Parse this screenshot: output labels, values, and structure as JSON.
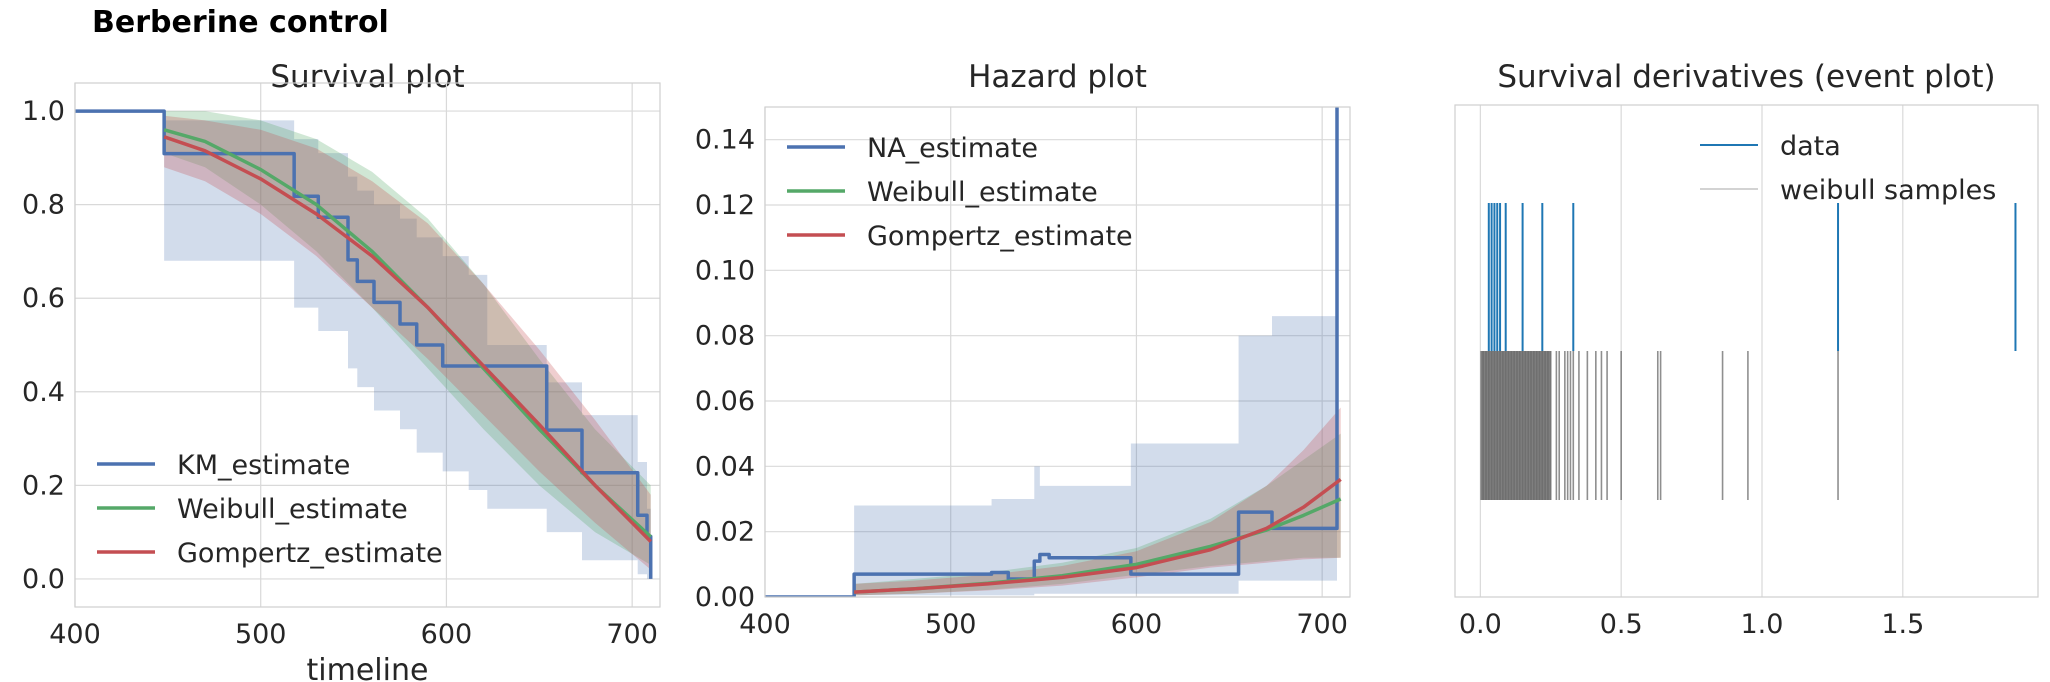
{
  "figure": {
    "suptitle": "Berberine control"
  },
  "colors": {
    "km": "#4c72b0",
    "km_band": "#4c72b0",
    "weibull": "#55a868",
    "gompertz": "#c44e52",
    "event_data": "#1f77b4",
    "event_samples": "#696969"
  },
  "chart_data": [
    {
      "type": "line",
      "title": "Survival plot",
      "xlabel": "timeline",
      "ylabel": "",
      "xlim": [
        400,
        715
      ],
      "ylim": [
        -0.06,
        1.06
      ],
      "xticks": [
        "400",
        "500",
        "600",
        "700"
      ],
      "yticks": [
        "0.0",
        "0.2",
        "0.4",
        "0.6",
        "0.8",
        "1.0"
      ],
      "legend_position": "lower-left",
      "series": [
        {
          "name": "KM_estimate",
          "kind": "step",
          "color_key": "km",
          "x": [
            400,
            448,
            518,
            531,
            547,
            552,
            561,
            575,
            584,
            598,
            612,
            622,
            654,
            673,
            703,
            708,
            710
          ],
          "y": [
            1.0,
            0.909,
            0.818,
            0.773,
            0.682,
            0.636,
            0.591,
            0.545,
            0.5,
            0.455,
            0.455,
            0.455,
            0.318,
            0.227,
            0.136,
            0.091,
            0.0
          ],
          "ci_lower": [
            1.0,
            0.68,
            0.58,
            0.53,
            0.45,
            0.41,
            0.36,
            0.32,
            0.27,
            0.23,
            0.19,
            0.15,
            0.1,
            0.04,
            0.01,
            0.0,
            0.0
          ],
          "ci_upper": [
            1.0,
            0.98,
            0.94,
            0.91,
            0.86,
            0.83,
            0.8,
            0.77,
            0.73,
            0.69,
            0.65,
            0.5,
            0.42,
            0.35,
            0.25,
            0.15,
            0.0
          ]
        },
        {
          "name": "Weibull_estimate",
          "kind": "line",
          "color_key": "weibull",
          "x": [
            448,
            470,
            500,
            530,
            560,
            590,
            620,
            650,
            680,
            710
          ],
          "y": [
            0.96,
            0.935,
            0.875,
            0.8,
            0.7,
            0.58,
            0.45,
            0.32,
            0.2,
            0.09
          ],
          "ci_lower": [
            0.91,
            0.88,
            0.8,
            0.7,
            0.58,
            0.45,
            0.32,
            0.2,
            0.1,
            0.03
          ],
          "ci_upper": [
            1.0,
            1.0,
            0.98,
            0.94,
            0.87,
            0.77,
            0.63,
            0.47,
            0.32,
            0.2
          ]
        },
        {
          "name": "Gompertz_estimate",
          "kind": "line",
          "color_key": "gompertz",
          "x": [
            448,
            470,
            500,
            530,
            560,
            590,
            620,
            650,
            680,
            710
          ],
          "y": [
            0.945,
            0.915,
            0.855,
            0.78,
            0.69,
            0.58,
            0.455,
            0.33,
            0.2,
            0.08
          ],
          "ci_lower": [
            0.88,
            0.85,
            0.78,
            0.69,
            0.58,
            0.47,
            0.35,
            0.23,
            0.12,
            0.02
          ],
          "ci_upper": [
            0.99,
            0.98,
            0.96,
            0.92,
            0.85,
            0.76,
            0.63,
            0.49,
            0.34,
            0.18
          ]
        }
      ]
    },
    {
      "type": "line",
      "title": "Hazard plot",
      "xlabel": "",
      "ylabel": "",
      "xlim": [
        400,
        715
      ],
      "ylim": [
        0,
        0.15
      ],
      "xticks": [
        "400",
        "500",
        "600",
        "700"
      ],
      "yticks": [
        "0.00",
        "0.02",
        "0.04",
        "0.06",
        "0.08",
        "0.10",
        "0.12",
        "0.14"
      ],
      "legend_position": "top-left",
      "series": [
        {
          "name": "NA_estimate",
          "kind": "step",
          "color_key": "km",
          "x": [
            400,
            448,
            522,
            531,
            545,
            548,
            553,
            597,
            655,
            673,
            707,
            708
          ],
          "y": [
            0.0,
            0.007,
            0.0075,
            0.0055,
            0.011,
            0.013,
            0.012,
            0.007,
            0.026,
            0.021,
            0.021,
            0.15
          ],
          "ci_lower": [
            0.0,
            0.0005,
            0.0005,
            0.0005,
            0.001,
            0.001,
            0.001,
            0.001,
            0.005,
            0.005,
            0.005,
            0.005
          ],
          "ci_upper": [
            0.0,
            0.028,
            0.03,
            0.03,
            0.04,
            0.034,
            0.034,
            0.047,
            0.08,
            0.086,
            0.086,
            0.086
          ]
        },
        {
          "name": "Weibull_estimate",
          "kind": "line",
          "color_key": "weibull",
          "x": [
            448,
            480,
            520,
            560,
            600,
            640,
            670,
            690,
            710
          ],
          "y": [
            0.0015,
            0.0025,
            0.0042,
            0.0065,
            0.01,
            0.0155,
            0.0205,
            0.025,
            0.03
          ],
          "ci_lower": [
            0.0005,
            0.001,
            0.0022,
            0.004,
            0.0068,
            0.0095,
            0.011,
            0.012,
            0.012
          ],
          "ci_upper": [
            0.004,
            0.0055,
            0.0075,
            0.0105,
            0.015,
            0.024,
            0.034,
            0.042,
            0.05
          ]
        },
        {
          "name": "Gompertz_estimate",
          "kind": "line",
          "color_key": "gompertz",
          "x": [
            448,
            480,
            520,
            560,
            600,
            640,
            670,
            690,
            710
          ],
          "y": [
            0.0015,
            0.0025,
            0.004,
            0.006,
            0.009,
            0.0145,
            0.021,
            0.0275,
            0.036
          ],
          "ci_lower": [
            0.0005,
            0.001,
            0.002,
            0.0035,
            0.006,
            0.009,
            0.0105,
            0.0115,
            0.012
          ],
          "ci_upper": [
            0.004,
            0.005,
            0.0068,
            0.0095,
            0.014,
            0.023,
            0.034,
            0.045,
            0.058
          ]
        }
      ]
    },
    {
      "type": "scatter",
      "subtype": "eventplot",
      "title": "Survival derivatives (event plot)",
      "xlabel": "",
      "ylabel": "",
      "xlim": [
        -0.09,
        1.98
      ],
      "xticks": [
        "0.0",
        "0.5",
        "1.0",
        "1.5"
      ],
      "legend_position": "top-right",
      "series": [
        {
          "name": "data",
          "color_key": "event_data",
          "row": 1,
          "values": [
            0.03,
            0.04,
            0.05,
            0.06,
            0.07,
            0.09,
            0.15,
            0.22,
            0.33,
            1.27,
            1.9
          ]
        },
        {
          "name": "weibull samples",
          "color_key": "event_samples",
          "row": 0,
          "values": [
            0.01,
            0.02,
            0.03,
            0.04,
            0.05,
            0.06,
            0.07,
            0.08,
            0.09,
            0.1,
            0.11,
            0.12,
            0.13,
            0.14,
            0.15,
            0.16,
            0.17,
            0.18,
            0.19,
            0.2,
            0.21,
            0.22,
            0.23,
            0.24,
            0.25,
            0.27,
            0.28,
            0.3,
            0.31,
            0.32,
            0.33,
            0.35,
            0.38,
            0.41,
            0.43,
            0.45,
            0.5,
            0.63,
            0.64,
            0.86,
            0.95,
            1.27
          ]
        }
      ]
    }
  ]
}
